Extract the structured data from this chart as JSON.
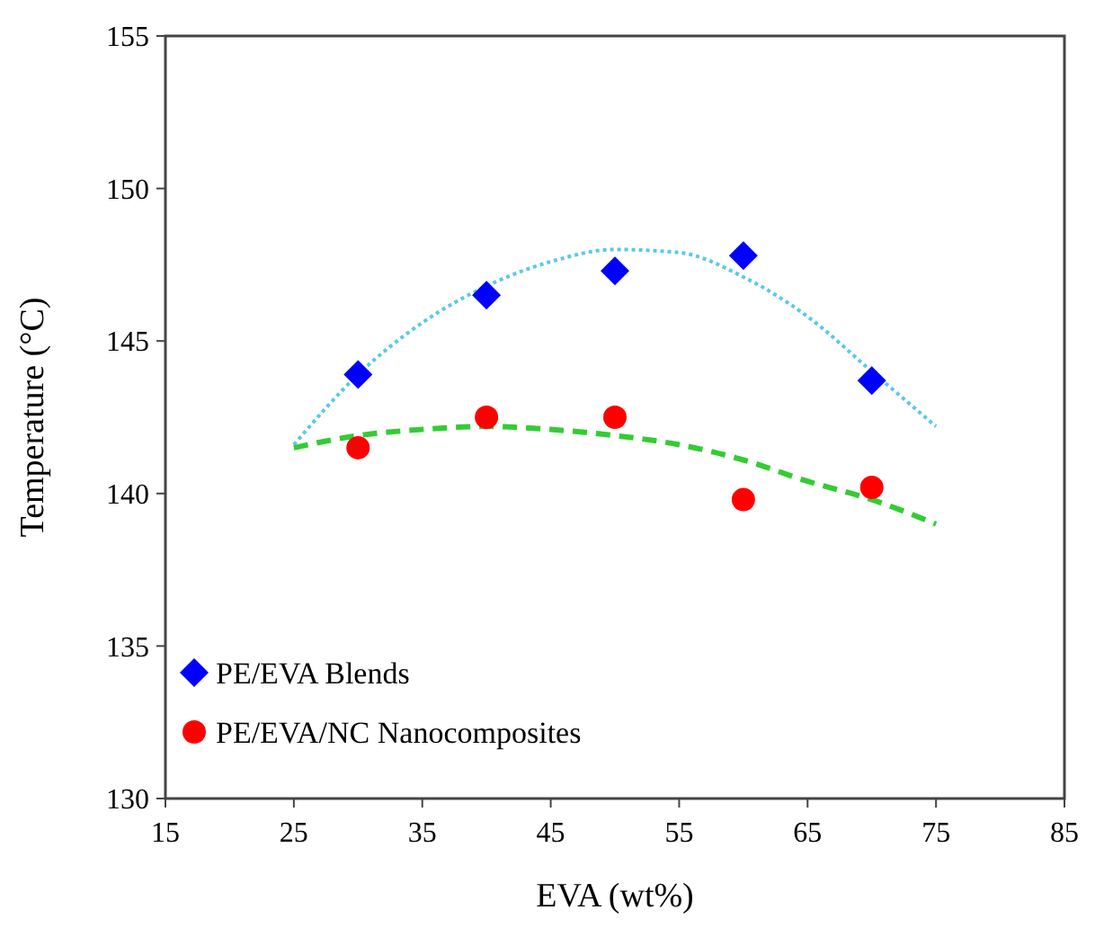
{
  "chart_data": {
    "type": "scatter",
    "xlabel": "EVA (wt%)",
    "ylabel": "Temperature  (°C)",
    "xlim": [
      15,
      85
    ],
    "xticks": [
      15,
      25,
      35,
      45,
      55,
      65,
      75,
      85
    ],
    "ylim": [
      130,
      155
    ],
    "yticks": [
      130,
      135,
      140,
      145,
      150,
      155
    ],
    "grid": false,
    "legend": "bottom left",
    "series": [
      {
        "name": "PE/EVA Blends",
        "marker": "diamond",
        "color": "#0000ff",
        "x": [
          30,
          40,
          50,
          60,
          70
        ],
        "values": [
          143.9,
          146.5,
          147.3,
          147.8,
          143.7
        ]
      },
      {
        "name": "PE/EVA/NC Nanocomposites",
        "marker": "circle",
        "color": "#ff0000",
        "x": [
          30,
          40,
          50,
          60,
          70
        ],
        "values": [
          141.5,
          142.5,
          142.5,
          139.8,
          140.2
        ]
      },
      {
        "type": "line",
        "line_style": "dotted",
        "marker": "none",
        "color": "#5bc8e8",
        "x": [
          25,
          30,
          35,
          40,
          45,
          50,
          55,
          60,
          65,
          70,
          75
        ],
        "values": [
          141.6,
          143.9,
          145.6,
          146.8,
          147.6,
          148.0,
          147.9,
          147.1,
          145.8,
          144.0,
          142.2
        ]
      },
      {
        "type": "line",
        "line_style": "dashed",
        "marker": "none",
        "color": "#33cc33",
        "x": [
          25,
          30,
          35,
          40,
          45,
          50,
          55,
          60,
          65,
          70,
          75
        ],
        "values": [
          141.5,
          141.9,
          142.1,
          142.2,
          142.1,
          141.9,
          141.6,
          141.1,
          140.4,
          139.8,
          139.0
        ]
      }
    ]
  }
}
